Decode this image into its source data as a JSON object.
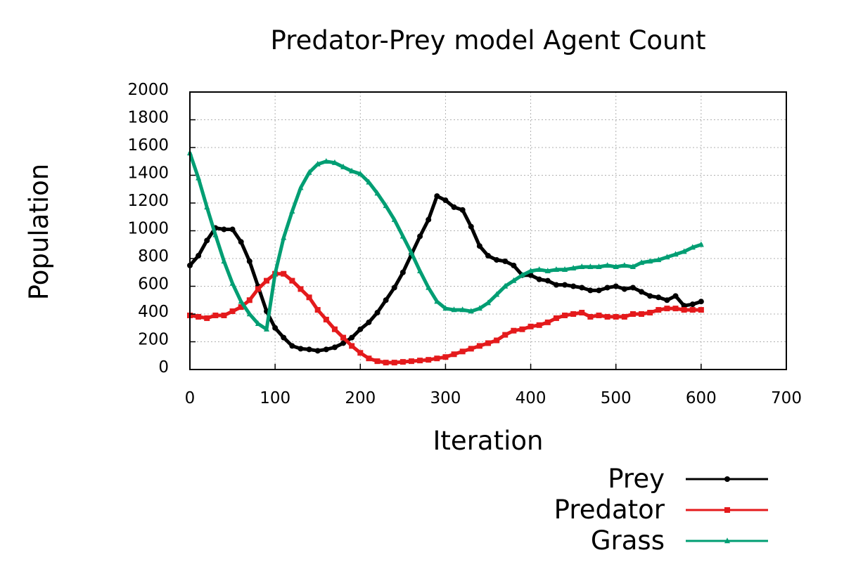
{
  "chart_data": {
    "type": "line",
    "title": "Predator-Prey model Agent Count",
    "xlabel": "Iteration",
    "ylabel": "Population",
    "xlim": [
      0,
      700
    ],
    "ylim": [
      0,
      2000
    ],
    "xticks": [
      "0",
      "100",
      "200",
      "300",
      "400",
      "500",
      "600",
      "700"
    ],
    "yticks": [
      "0",
      "200",
      "400",
      "600",
      "800",
      "1000",
      "1200",
      "1400",
      "1600",
      "1800",
      "2000"
    ],
    "xtick_values": [
      0,
      100,
      200,
      300,
      400,
      500,
      600,
      700
    ],
    "ytick_values": [
      0,
      200,
      400,
      600,
      800,
      1000,
      1200,
      1400,
      1600,
      1800,
      2000
    ],
    "grid": true,
    "legend_position": "bottom-right",
    "x": [
      0,
      10,
      20,
      30,
      40,
      50,
      60,
      70,
      80,
      90,
      100,
      110,
      120,
      130,
      140,
      150,
      160,
      170,
      180,
      190,
      200,
      210,
      220,
      230,
      240,
      250,
      260,
      270,
      280,
      290,
      300,
      310,
      320,
      330,
      340,
      350,
      360,
      370,
      380,
      390,
      400,
      410,
      420,
      430,
      440,
      450,
      460,
      470,
      480,
      490,
      500,
      510,
      520,
      530,
      540,
      550,
      560,
      570,
      580,
      590,
      600
    ],
    "series": [
      {
        "name": "Prey",
        "color": "#000000",
        "marker": "circle",
        "values": [
          750,
          820,
          930,
          1020,
          1010,
          1010,
          920,
          780,
          600,
          420,
          300,
          230,
          170,
          150,
          145,
          135,
          145,
          160,
          190,
          230,
          290,
          340,
          410,
          500,
          590,
          700,
          830,
          960,
          1080,
          1250,
          1220,
          1170,
          1150,
          1030,
          890,
          820,
          790,
          780,
          750,
          680,
          680,
          650,
          640,
          610,
          610,
          600,
          590,
          570,
          570,
          590,
          600,
          580,
          590,
          560,
          530,
          520,
          500,
          530,
          460,
          470,
          490
        ]
      },
      {
        "name": "Predator",
        "color": "#e41a1c",
        "marker": "square",
        "values": [
          390,
          380,
          370,
          390,
          390,
          420,
          450,
          500,
          580,
          640,
          690,
          690,
          640,
          580,
          520,
          430,
          360,
          290,
          230,
          170,
          120,
          80,
          60,
          50,
          50,
          55,
          60,
          65,
          70,
          80,
          90,
          110,
          130,
          150,
          170,
          190,
          210,
          250,
          280,
          290,
          310,
          320,
          340,
          370,
          390,
          400,
          410,
          380,
          390,
          380,
          380,
          380,
          400,
          400,
          410,
          430,
          440,
          440,
          430,
          430,
          430
        ]
      },
      {
        "name": "Grass",
        "color": "#009e73",
        "marker": "triangle",
        "values": [
          1560,
          1380,
          1170,
          970,
          780,
          620,
          490,
          400,
          330,
          290,
          690,
          950,
          1140,
          1310,
          1420,
          1480,
          1500,
          1490,
          1460,
          1430,
          1410,
          1350,
          1270,
          1180,
          1080,
          960,
          840,
          710,
          590,
          490,
          440,
          430,
          430,
          420,
          440,
          480,
          540,
          600,
          640,
          680,
          710,
          720,
          710,
          720,
          720,
          730,
          740,
          740,
          740,
          750,
          740,
          750,
          740,
          770,
          780,
          790,
          810,
          830,
          850,
          880,
          900
        ]
      }
    ]
  }
}
